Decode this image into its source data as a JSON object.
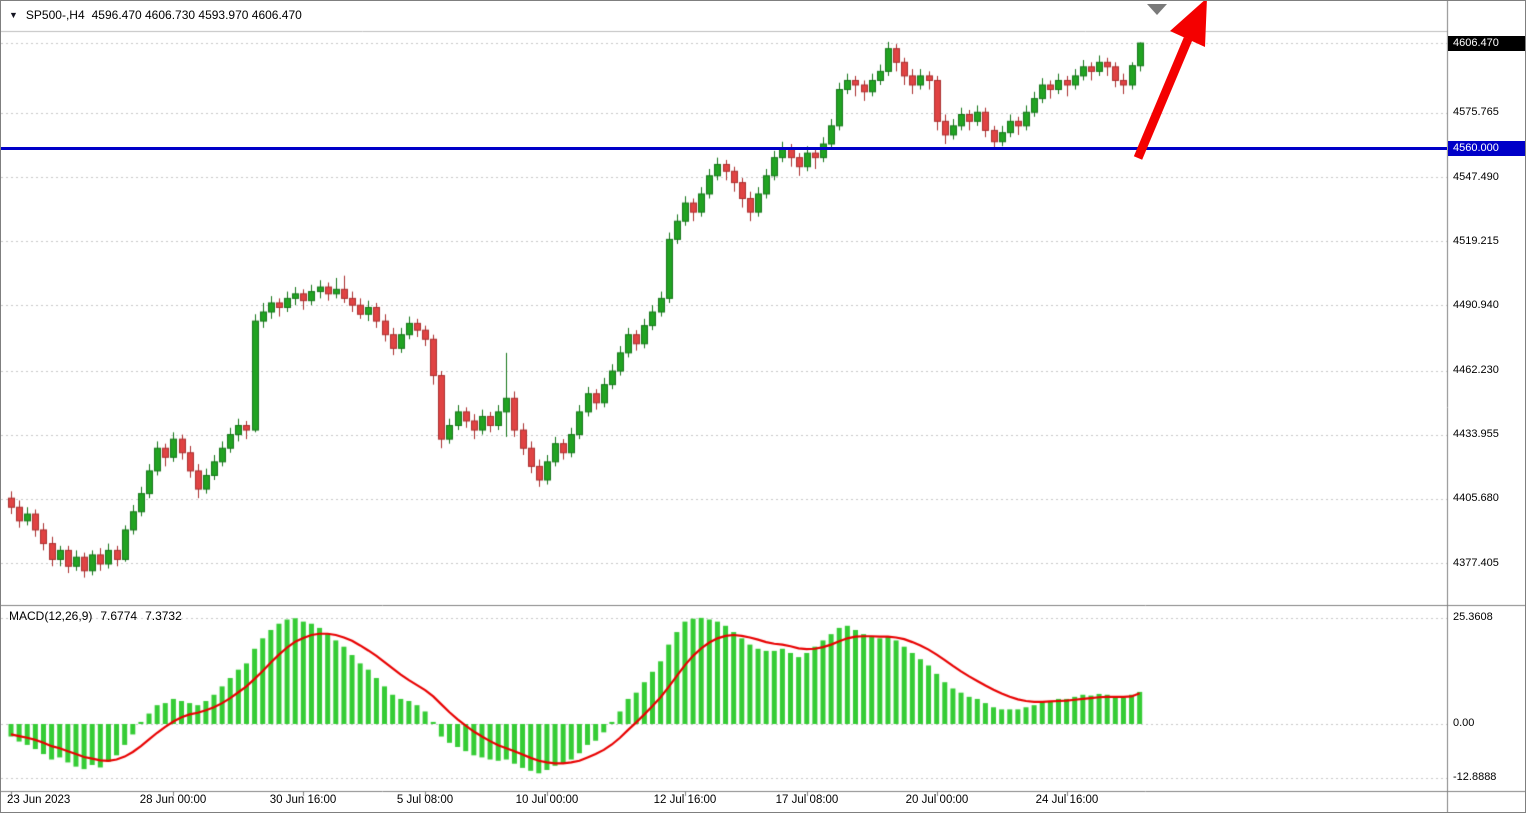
{
  "window": {
    "dropdown_icon": "▼",
    "symbol_timeframe": "SP500-,H4",
    "ohlc": "4596.470 4606.730 4593.970 4606.470"
  },
  "indicator": {
    "name": "MACD(12,26,9)",
    "main_value": "7.6774",
    "signal_value": "7.3732"
  },
  "colors": {
    "bull": "#21a322",
    "bull_dark": "#16761a",
    "bear": "#e04343",
    "bear_dark": "#aa2f2f",
    "histogram": "#35cc35",
    "signal": "#e80000",
    "level_line": "#0000c8",
    "grid": "#c6c6c6",
    "frame": "#808080",
    "arrow": "#f40000",
    "tag_current_bg": "#000000",
    "tag_level_bg": "#0000c8"
  },
  "chart_data": {
    "type": "candlestick",
    "symbol": "SP500-",
    "timeframe": "H4",
    "title": "SP500-,H4 4596.470 4606.730 4593.970 4606.470",
    "current_ohlc": {
      "open": 4596.47,
      "high": 4606.73,
      "low": 4593.97,
      "close": 4606.47
    },
    "level_line_price": 4560.0,
    "ylim_main": [
      4361.0,
      4625.0
    ],
    "grid": "dashed-horizontal",
    "y_ticks": [
      {
        "label": "4606.470",
        "price": 4606.47,
        "tag": "current-price"
      },
      {
        "label": "4575.765",
        "price": 4575.765
      },
      {
        "label": "4560.000",
        "price": 4560.0,
        "tag": "level-line"
      },
      {
        "label": "4547.490",
        "price": 4547.49
      },
      {
        "label": "4519.215",
        "price": 4519.215
      },
      {
        "label": "4490.940",
        "price": 4490.94
      },
      {
        "label": "4462.230",
        "price": 4462.23
      },
      {
        "label": "4433.955",
        "price": 4433.955
      },
      {
        "label": "4405.680",
        "price": 4405.68
      },
      {
        "label": "4377.405",
        "price": 4377.405
      }
    ],
    "x_ticks": [
      {
        "index": 0,
        "label": "23 Jun 2023"
      },
      {
        "index": 20,
        "label": "28 Jun 00:00"
      },
      {
        "index": 36,
        "label": "30 Jun 16:00"
      },
      {
        "index": 51,
        "label": "5 Jul 08:00"
      },
      {
        "index": 66,
        "label": "10 Jul 00:00"
      },
      {
        "index": 83,
        "label": "12 Jul 16:00"
      },
      {
        "index": 98,
        "label": "17 Jul 08:00"
      },
      {
        "index": 114,
        "label": "20 Jul 00:00"
      },
      {
        "index": 130,
        "label": "24 Jul 16:00"
      }
    ],
    "candles": [
      [
        4406,
        4409,
        4399,
        4402
      ],
      [
        4402,
        4405,
        4393,
        4396
      ],
      [
        4396,
        4402,
        4394,
        4399
      ],
      [
        4399,
        4401,
        4389,
        4392
      ],
      [
        4392,
        4395,
        4383,
        4386
      ],
      [
        4386,
        4389,
        4376,
        4379
      ],
      [
        4379,
        4385,
        4376,
        4383
      ],
      [
        4383,
        4385,
        4373,
        4376
      ],
      [
        4376,
        4383,
        4374,
        4380
      ],
      [
        4380,
        4382,
        4371,
        4374
      ],
      [
        4374,
        4383,
        4372,
        4381
      ],
      [
        4381,
        4384,
        4374,
        4377
      ],
      [
        4377,
        4386,
        4375,
        4383
      ],
      [
        4383,
        4385,
        4376,
        4379
      ],
      [
        4379,
        4394,
        4378,
        4392
      ],
      [
        4392,
        4403,
        4390,
        4400
      ],
      [
        4400,
        4411,
        4398,
        4408
      ],
      [
        4408,
        4421,
        4406,
        4418
      ],
      [
        4418,
        4431,
        4416,
        4428
      ],
      [
        4428,
        4430,
        4420,
        4424
      ],
      [
        4424,
        4435,
        4422,
        4432
      ],
      [
        4432,
        4434,
        4423,
        4426
      ],
      [
        4426,
        4429,
        4415,
        4418
      ],
      [
        4418,
        4421,
        4406,
        4410
      ],
      [
        4410,
        4419,
        4408,
        4416
      ],
      [
        4416,
        4425,
        4414,
        4422
      ],
      [
        4422,
        4431,
        4420,
        4428
      ],
      [
        4428,
        4437,
        4426,
        4434
      ],
      [
        4434,
        4441,
        4431,
        4438
      ],
      [
        4438,
        4440,
        4432,
        4436
      ],
      [
        4436,
        4487,
        4435,
        4484
      ],
      [
        4484,
        4492,
        4481,
        4488
      ],
      [
        4488,
        4495,
        4485,
        4492
      ],
      [
        4492,
        4494,
        4486,
        4490
      ],
      [
        4490,
        4497,
        4488,
        4494
      ],
      [
        4494,
        4499,
        4491,
        4496
      ],
      [
        4496,
        4498,
        4489,
        4493
      ],
      [
        4493,
        4500,
        4491,
        4497
      ],
      [
        4497,
        4502,
        4494,
        4499
      ],
      [
        4499,
        4501,
        4493,
        4496
      ],
      [
        4496,
        4503,
        4494,
        4498
      ],
      [
        4498,
        4504,
        4492,
        4494
      ],
      [
        4494,
        4497,
        4488,
        4491
      ],
      [
        4491,
        4494,
        4485,
        4487
      ],
      [
        4487,
        4493,
        4484,
        4490
      ],
      [
        4490,
        4492,
        4481,
        4484
      ],
      [
        4484,
        4487,
        4475,
        4478
      ],
      [
        4478,
        4481,
        4469,
        4472
      ],
      [
        4472,
        4481,
        4470,
        4478
      ],
      [
        4478,
        4486,
        4476,
        4483
      ],
      [
        4483,
        4485,
        4477,
        4480
      ],
      [
        4480,
        4482,
        4473,
        4476
      ],
      [
        4476,
        4478,
        4456,
        4460
      ],
      [
        4460,
        4462,
        4428,
        4432
      ],
      [
        4432,
        4441,
        4430,
        4438
      ],
      [
        4438,
        4447,
        4436,
        4444
      ],
      [
        4444,
        4446,
        4437,
        4440
      ],
      [
        4440,
        4443,
        4432,
        4436
      ],
      [
        4436,
        4445,
        4434,
        4442
      ],
      [
        4442,
        4444,
        4435,
        4438
      ],
      [
        4438,
        4447,
        4436,
        4444
      ],
      [
        4444,
        4470,
        4433,
        4450
      ],
      [
        4450,
        4453,
        4433,
        4436
      ],
      [
        4436,
        4439,
        4425,
        4428
      ],
      [
        4428,
        4431,
        4417,
        4420
      ],
      [
        4420,
        4423,
        4411,
        4414
      ],
      [
        4414,
        4425,
        4412,
        4422
      ],
      [
        4422,
        4433,
        4420,
        4430
      ],
      [
        4430,
        4432,
        4423,
        4426
      ],
      [
        4426,
        4437,
        4424,
        4434
      ],
      [
        4434,
        4447,
        4432,
        4444
      ],
      [
        4444,
        4455,
        4442,
        4452
      ],
      [
        4452,
        4454,
        4445,
        4448
      ],
      [
        4448,
        4459,
        4446,
        4456
      ],
      [
        4456,
        4465,
        4454,
        4462
      ],
      [
        4462,
        4473,
        4460,
        4470
      ],
      [
        4470,
        4481,
        4468,
        4478
      ],
      [
        4478,
        4480,
        4471,
        4474
      ],
      [
        4474,
        4485,
        4472,
        4482
      ],
      [
        4482,
        4491,
        4480,
        4488
      ],
      [
        4488,
        4497,
        4486,
        4494
      ],
      [
        4494,
        4523,
        4492,
        4520
      ],
      [
        4520,
        4531,
        4518,
        4528
      ],
      [
        4528,
        4539,
        4526,
        4536
      ],
      [
        4536,
        4538,
        4528,
        4532
      ],
      [
        4532,
        4543,
        4530,
        4540
      ],
      [
        4540,
        4551,
        4538,
        4548
      ],
      [
        4548,
        4556,
        4546,
        4553
      ],
      [
        4553,
        4555,
        4546,
        4550
      ],
      [
        4550,
        4552,
        4541,
        4545
      ],
      [
        4545,
        4547,
        4534,
        4538
      ],
      [
        4538,
        4541,
        4528,
        4532
      ],
      [
        4532,
        4543,
        4530,
        4540
      ],
      [
        4540,
        4551,
        4538,
        4548
      ],
      [
        4548,
        4559,
        4546,
        4556
      ],
      [
        4556,
        4563,
        4554,
        4560
      ],
      [
        4560,
        4562,
        4552,
        4556
      ],
      [
        4556,
        4558,
        4548,
        4552
      ],
      [
        4552,
        4561,
        4550,
        4558
      ],
      [
        4558,
        4560,
        4551,
        4556
      ],
      [
        4556,
        4565,
        4554,
        4562
      ],
      [
        4562,
        4573,
        4560,
        4570
      ],
      [
        4570,
        4589,
        4568,
        4586
      ],
      [
        4586,
        4593,
        4584,
        4590
      ],
      [
        4590,
        4592,
        4583,
        4588
      ],
      [
        4588,
        4590,
        4581,
        4585
      ],
      [
        4585,
        4593,
        4583,
        4590
      ],
      [
        4590,
        4597,
        4588,
        4594
      ],
      [
        4594,
        4607,
        4592,
        4604
      ],
      [
        4604,
        4606,
        4594,
        4598
      ],
      [
        4598,
        4600,
        4588,
        4592
      ],
      [
        4592,
        4595,
        4584,
        4588
      ],
      [
        4588,
        4595,
        4586,
        4592
      ],
      [
        4592,
        4594,
        4586,
        4590
      ],
      [
        4590,
        4592,
        4568,
        4572
      ],
      [
        4572,
        4575,
        4562,
        4566
      ],
      [
        4566,
        4573,
        4564,
        4570
      ],
      [
        4570,
        4578,
        4568,
        4575
      ],
      [
        4575,
        4577,
        4568,
        4572
      ],
      [
        4572,
        4579,
        4570,
        4576
      ],
      [
        4576,
        4578,
        4565,
        4568
      ],
      [
        4568,
        4570,
        4560,
        4563
      ],
      [
        4563,
        4570,
        4561,
        4567
      ],
      [
        4567,
        4575,
        4565,
        4572
      ],
      [
        4572,
        4574,
        4566,
        4570
      ],
      [
        4570,
        4579,
        4568,
        4576
      ],
      [
        4576,
        4585,
        4574,
        4582
      ],
      [
        4582,
        4591,
        4580,
        4588
      ],
      [
        4588,
        4590,
        4582,
        4586
      ],
      [
        4586,
        4593,
        4584,
        4590
      ],
      [
        4590,
        4592,
        4583,
        4588
      ],
      [
        4588,
        4595,
        4586,
        4592
      ],
      [
        4592,
        4599,
        4590,
        4596
      ],
      [
        4596,
        4598,
        4590,
        4594
      ],
      [
        4594,
        4601,
        4592,
        4598
      ],
      [
        4598,
        4600,
        4592,
        4596
      ],
      [
        4596,
        4598,
        4587,
        4590
      ],
      [
        4590,
        4593,
        4584,
        4588
      ],
      [
        4588,
        4598,
        4586,
        4596.5
      ],
      [
        4596.47,
        4606.73,
        4593.97,
        4606.47
      ]
    ],
    "macd": {
      "name": "MACD(12,26,9)",
      "main_value": 7.6774,
      "signal_value": 7.3732,
      "ylim": [
        -15.5,
        27.0
      ],
      "grid_levels": [
        25.3608,
        0,
        -12.8888
      ],
      "y_ticks": [
        "25.3608",
        "0.00",
        "-12.8888"
      ],
      "main": [
        -3.0,
        -4.2,
        -5.0,
        -6.0,
        -7.2,
        -8.5,
        -8.0,
        -9.2,
        -10.2,
        -10.8,
        -9.8,
        -10.4,
        -9.0,
        -7.5,
        -5.0,
        -2.5,
        0.5,
        2.5,
        4.5,
        5.0,
        6.0,
        5.5,
        5.0,
        4.5,
        5.5,
        7.0,
        9.0,
        11.0,
        13.0,
        14.5,
        18.0,
        20.5,
        22.5,
        24.0,
        25.0,
        25.3,
        24.5,
        24.0,
        23.0,
        21.5,
        20.0,
        18.5,
        16.5,
        14.5,
        13.0,
        11.0,
        9.0,
        7.0,
        6.0,
        5.5,
        4.5,
        3.0,
        0.5,
        -3.0,
        -4.5,
        -5.5,
        -6.5,
        -7.5,
        -8.0,
        -8.5,
        -8.8,
        -8.5,
        -9.5,
        -10.5,
        -11.2,
        -11.8,
        -11.0,
        -10.0,
        -9.5,
        -8.5,
        -7.0,
        -5.0,
        -4.0,
        -2.0,
        0.5,
        3.0,
        6.0,
        7.5,
        10.0,
        12.5,
        15.0,
        19.0,
        22.0,
        24.5,
        25.2,
        25.4,
        25.0,
        24.5,
        23.5,
        22.0,
        20.5,
        19.0,
        18.0,
        17.5,
        17.5,
        18.0,
        17.0,
        16.0,
        17.0,
        18.5,
        20.0,
        21.5,
        23.0,
        23.5,
        22.5,
        21.5,
        21.0,
        20.5,
        21.0,
        20.0,
        18.5,
        17.0,
        15.5,
        14.0,
        12.0,
        10.0,
        8.5,
        7.5,
        6.5,
        6.0,
        5.0,
        4.0,
        3.5,
        3.5,
        3.5,
        4.0,
        4.5,
        5.5,
        5.5,
        6.0,
        6.0,
        6.5,
        7.0,
        6.8,
        7.2,
        7.0,
        6.5,
        6.3,
        7.0,
        7.6774
      ],
      "signal": [
        -2.5,
        -2.9,
        -3.3,
        -3.8,
        -4.5,
        -5.3,
        -5.8,
        -6.5,
        -7.2,
        -7.9,
        -8.3,
        -8.7,
        -8.8,
        -8.5,
        -7.8,
        -6.7,
        -5.3,
        -3.7,
        -2.1,
        -0.7,
        0.6,
        1.6,
        2.3,
        2.7,
        3.3,
        4.0,
        5.0,
        6.2,
        7.6,
        9.0,
        10.8,
        12.7,
        14.7,
        16.6,
        18.3,
        19.7,
        20.6,
        21.3,
        21.6,
        21.6,
        21.3,
        20.7,
        19.9,
        18.8,
        17.6,
        16.3,
        14.8,
        13.3,
        11.8,
        10.5,
        9.3,
        8.1,
        6.6,
        4.7,
        2.8,
        1.1,
        -0.4,
        -1.8,
        -3.0,
        -4.1,
        -5.1,
        -5.8,
        -6.5,
        -7.3,
        -8.1,
        -8.8,
        -9.2,
        -9.4,
        -9.4,
        -9.2,
        -8.8,
        -8.0,
        -7.2,
        -6.2,
        -4.9,
        -3.3,
        -1.4,
        0.4,
        2.3,
        4.3,
        6.4,
        8.9,
        11.5,
        14.1,
        16.3,
        18.1,
        19.5,
        20.5,
        21.1,
        21.3,
        21.1,
        20.7,
        20.2,
        19.6,
        19.2,
        19.0,
        18.6,
        18.1,
        17.9,
        18.0,
        18.4,
        19.0,
        19.8,
        20.5,
        20.9,
        21.0,
        21.0,
        20.9,
        20.9,
        20.7,
        20.3,
        19.6,
        18.8,
        17.8,
        16.6,
        15.3,
        13.9,
        12.6,
        11.4,
        10.3,
        9.2,
        8.2,
        7.3,
        6.5,
        5.9,
        5.5,
        5.3,
        5.3,
        5.4,
        5.5,
        5.6,
        5.8,
        6.0,
        6.2,
        6.4,
        6.5,
        6.5,
        6.5,
        6.6,
        7.3732
      ]
    },
    "annotations": [
      {
        "type": "up-arrow",
        "color": "#f40000",
        "position": "top-right"
      },
      {
        "type": "chart-shift-marker",
        "color": "#7a7a7a",
        "position": "top"
      }
    ]
  }
}
